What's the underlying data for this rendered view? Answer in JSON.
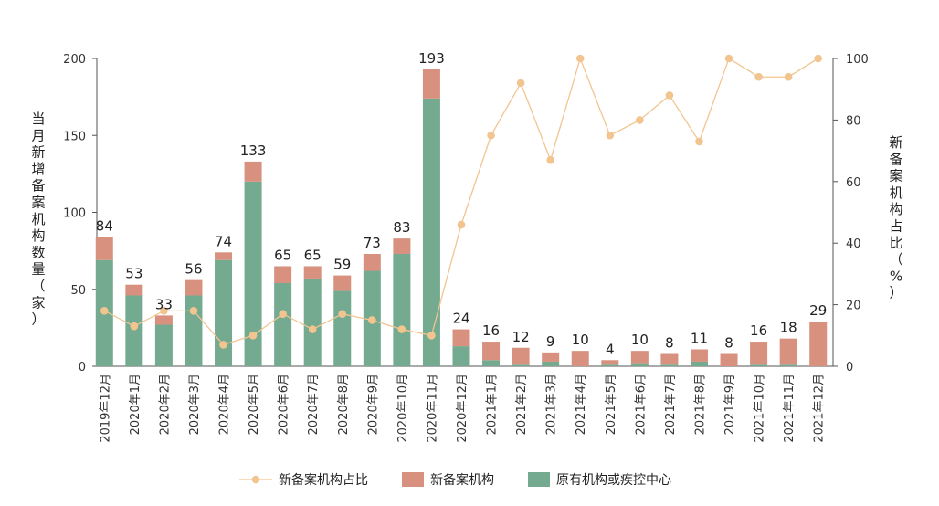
{
  "chart_data": {
    "type": "bar",
    "stacked": true,
    "categories": [
      "2019年12月",
      "2020年1月",
      "2020年2月",
      "2020年3月",
      "2020年4月",
      "2020年5月",
      "2020年6月",
      "2020年7月",
      "2020年8月",
      "2020年9月",
      "2020年10月",
      "2020年11月",
      "2020年12月",
      "2021年1月",
      "2021年2月",
      "2021年3月",
      "2021年4月",
      "2021年5月",
      "2021年6月",
      "2021年7月",
      "2021年8月",
      "2021年9月",
      "2021年10月",
      "2021年11月",
      "2021年12月"
    ],
    "totals": [
      84,
      53,
      33,
      56,
      74,
      133,
      65,
      65,
      59,
      73,
      83,
      193,
      24,
      16,
      12,
      9,
      10,
      4,
      10,
      8,
      11,
      8,
      16,
      18,
      29
    ],
    "series": [
      {
        "name": "原有机构或疾控中心",
        "color": "#74aa90",
        "values": [
          69,
          46,
          27,
          46,
          69,
          120,
          54,
          57,
          49,
          62,
          73,
          174,
          13,
          4,
          1,
          3,
          0,
          1,
          2,
          1,
          3,
          0,
          1,
          1,
          0
        ]
      },
      {
        "name": "新备案机构",
        "color": "#d9917f",
        "values": [
          15,
          7,
          6,
          10,
          5,
          13,
          11,
          8,
          10,
          11,
          10,
          19,
          11,
          12,
          11,
          6,
          10,
          3,
          8,
          7,
          8,
          8,
          15,
          17,
          29
        ]
      }
    ],
    "line": {
      "name": "新备案机构占比",
      "color": "#f2c590",
      "values": [
        18,
        13,
        18,
        18,
        7,
        10,
        17,
        12,
        17,
        15,
        12,
        10,
        46,
        75,
        92,
        67,
        100,
        75,
        80,
        88,
        73,
        100,
        94,
        94,
        100
      ]
    },
    "ylabel": "当月新增备案机构数量（家）",
    "ylabel_right": "新备案机构占比（%）",
    "ylim": [
      0,
      200
    ],
    "yticks": [
      0,
      50,
      100,
      150,
      200
    ],
    "ylim_right": [
      0,
      100
    ],
    "yticks_right": [
      0,
      20,
      40,
      60,
      80,
      100
    ],
    "legend_position": "bottom"
  }
}
